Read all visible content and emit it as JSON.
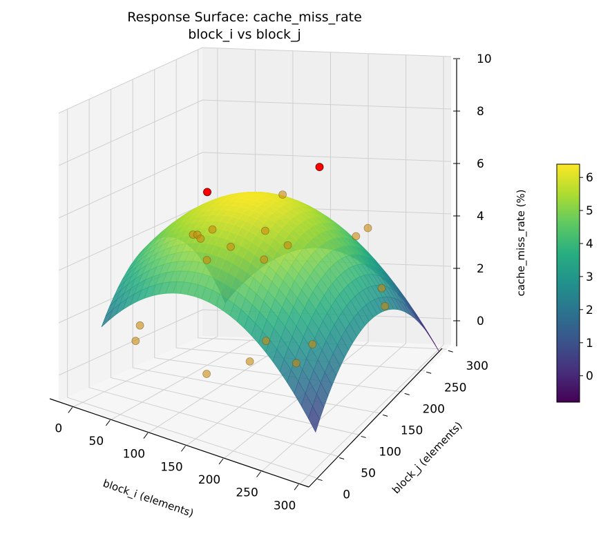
{
  "chart_data": {
    "type": "surface3d",
    "title": "Response Surface: cache_miss_rate",
    "subtitle": "block_i vs block_j",
    "xlabel": "block_i (elements)",
    "ylabel": "block_j (elements)",
    "zlabel": "cache_miss_rate (%)",
    "x_ticks": [
      "0",
      "50",
      "100",
      "150",
      "200",
      "250",
      "300"
    ],
    "y_ticks": [
      "0",
      "50",
      "100",
      "150",
      "200",
      "250",
      "300"
    ],
    "z_ticks": [
      "0",
      "2",
      "4",
      "6",
      "8",
      "10"
    ],
    "xlim": [
      -20,
      310
    ],
    "ylim": [
      -20,
      310
    ],
    "zlim": [
      -1,
      10
    ],
    "surface": {
      "x_range": [
        16,
        300
      ],
      "y_range": [
        16,
        300
      ],
      "peak": [
        140,
        140
      ],
      "z_max": 6.4,
      "z_min": -0.8,
      "colormap": "viridis"
    },
    "colorbar": {
      "ticks": [
        "0",
        "1",
        "2",
        "3",
        "4",
        "5",
        "6"
      ],
      "range": [
        -0.8,
        6.4
      ]
    },
    "points": [
      {
        "x": 50,
        "y": 200,
        "z": 5.6,
        "outlier": true
      },
      {
        "x": 170,
        "y": 250,
        "z": 6.4,
        "outlier": true
      },
      {
        "x": 60,
        "y": 150,
        "z": 4.5
      },
      {
        "x": 60,
        "y": 160,
        "z": 4.4
      },
      {
        "x": 70,
        "y": 150,
        "z": 4.4
      },
      {
        "x": 80,
        "y": 160,
        "z": 4.7
      },
      {
        "x": 90,
        "y": 130,
        "z": 3.9
      },
      {
        "x": 110,
        "y": 150,
        "z": 4.3
      },
      {
        "x": 150,
        "y": 200,
        "z": 5.9
      },
      {
        "x": 150,
        "y": 160,
        "z": 5.0
      },
      {
        "x": 160,
        "y": 140,
        "z": 4.2
      },
      {
        "x": 180,
        "y": 160,
        "z": 4.6
      },
      {
        "x": 230,
        "y": 230,
        "z": 4.2
      },
      {
        "x": 240,
        "y": 240,
        "z": 4.4
      },
      {
        "x": 30,
        "y": 80,
        "z": 1.5
      },
      {
        "x": 30,
        "y": 70,
        "z": 1.0
      },
      {
        "x": 130,
        "y": 60,
        "z": 0.6
      },
      {
        "x": 170,
        "y": 90,
        "z": 1.0
      },
      {
        "x": 180,
        "y": 110,
        "z": 1.6
      },
      {
        "x": 220,
        "y": 110,
        "z": 1.0
      },
      {
        "x": 230,
        "y": 130,
        "z": 1.5
      },
      {
        "x": 270,
        "y": 220,
        "z": 2.5
      },
      {
        "x": 280,
        "y": 210,
        "z": 2.0
      }
    ]
  }
}
